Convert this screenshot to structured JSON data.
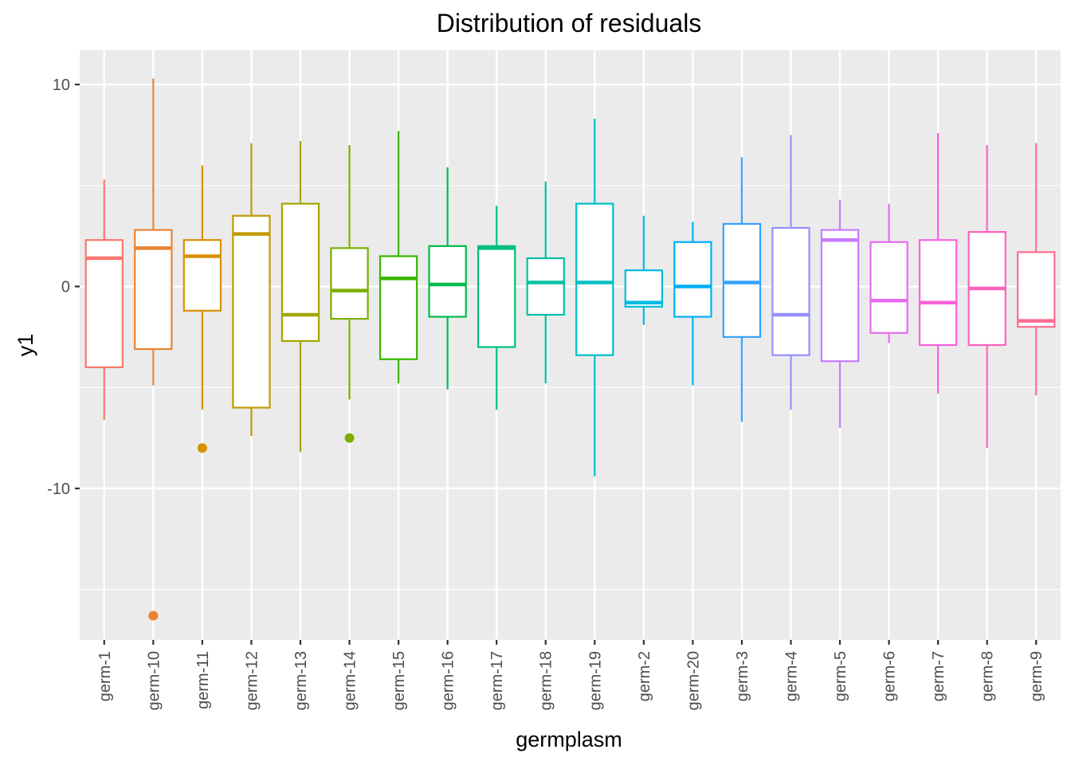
{
  "chart_data": {
    "type": "boxplot",
    "title": "Distribution of residuals",
    "xlabel": "germplasm",
    "ylabel": "y1",
    "ylim": [
      -17.5,
      11.7
    ],
    "y_ticks": [
      -10,
      0,
      10
    ],
    "y_tick_labels": [
      "-10",
      "0",
      "10"
    ],
    "grid": true,
    "categories": [
      "germ-1",
      "germ-10",
      "germ-11",
      "germ-12",
      "germ-13",
      "germ-14",
      "germ-15",
      "germ-16",
      "germ-17",
      "germ-18",
      "germ-19",
      "germ-2",
      "germ-20",
      "germ-3",
      "germ-4",
      "germ-5",
      "germ-6",
      "germ-7",
      "germ-8",
      "germ-9"
    ],
    "colors": [
      "#F8766D",
      "#EA8331",
      "#D89000",
      "#C09B00",
      "#A3A500",
      "#7CAE00",
      "#39B600",
      "#00BB4E",
      "#00BF7D",
      "#00C1A3",
      "#00BFC4",
      "#00BAE0",
      "#00B0F6",
      "#35A2FF",
      "#9590FF",
      "#C77CFF",
      "#E76BF3",
      "#FA62DB",
      "#FF62BC",
      "#FF6C91"
    ],
    "boxes": [
      {
        "lower_whisker": -6.6,
        "q1": -4.0,
        "median": 1.4,
        "q3": 2.3,
        "upper_whisker": 5.3,
        "outliers": []
      },
      {
        "lower_whisker": -4.9,
        "q1": -3.1,
        "median": 1.9,
        "q3": 2.8,
        "upper_whisker": 10.3,
        "outliers": [
          -16.3
        ]
      },
      {
        "lower_whisker": -6.1,
        "q1": -1.2,
        "median": 1.5,
        "q3": 2.3,
        "upper_whisker": 6.0,
        "outliers": [
          -8.0
        ]
      },
      {
        "lower_whisker": -7.4,
        "q1": -6.0,
        "median": 2.6,
        "q3": 3.5,
        "upper_whisker": 7.1,
        "outliers": []
      },
      {
        "lower_whisker": -8.2,
        "q1": -2.7,
        "median": -1.4,
        "q3": 4.1,
        "upper_whisker": 7.2,
        "outliers": []
      },
      {
        "lower_whisker": -5.6,
        "q1": -1.6,
        "median": -0.2,
        "q3": 1.9,
        "upper_whisker": 7.0,
        "outliers": [
          -7.5
        ]
      },
      {
        "lower_whisker": -4.8,
        "q1": -3.6,
        "median": 0.4,
        "q3": 1.5,
        "upper_whisker": 7.7,
        "outliers": []
      },
      {
        "lower_whisker": -5.1,
        "q1": -1.5,
        "median": 0.1,
        "q3": 2.0,
        "upper_whisker": 5.9,
        "outliers": []
      },
      {
        "lower_whisker": -6.1,
        "q1": -3.0,
        "median": 1.9,
        "q3": 2.0,
        "upper_whisker": 4.0,
        "outliers": []
      },
      {
        "lower_whisker": -4.8,
        "q1": -1.4,
        "median": 0.2,
        "q3": 1.4,
        "upper_whisker": 5.2,
        "outliers": []
      },
      {
        "lower_whisker": -9.4,
        "q1": -3.4,
        "median": 0.2,
        "q3": 4.1,
        "upper_whisker": 8.3,
        "outliers": []
      },
      {
        "lower_whisker": -1.9,
        "q1": -1.0,
        "median": -0.8,
        "q3": 0.8,
        "upper_whisker": 3.5,
        "outliers": []
      },
      {
        "lower_whisker": -4.9,
        "q1": -1.5,
        "median": 0.0,
        "q3": 2.2,
        "upper_whisker": 3.2,
        "outliers": []
      },
      {
        "lower_whisker": -6.7,
        "q1": -2.5,
        "median": 0.2,
        "q3": 3.1,
        "upper_whisker": 6.4,
        "outliers": []
      },
      {
        "lower_whisker": -6.1,
        "q1": -3.4,
        "median": -1.4,
        "q3": 2.9,
        "upper_whisker": 7.5,
        "outliers": []
      },
      {
        "lower_whisker": -7.0,
        "q1": -3.7,
        "median": 2.3,
        "q3": 2.8,
        "upper_whisker": 4.3,
        "outliers": []
      },
      {
        "lower_whisker": -2.8,
        "q1": -2.3,
        "median": -0.7,
        "q3": 2.2,
        "upper_whisker": 4.1,
        "outliers": []
      },
      {
        "lower_whisker": -5.3,
        "q1": -2.9,
        "median": -0.8,
        "q3": 2.3,
        "upper_whisker": 7.6,
        "outliers": []
      },
      {
        "lower_whisker": -8.0,
        "q1": -2.9,
        "median": -0.1,
        "q3": 2.7,
        "upper_whisker": 7.0,
        "outliers": []
      },
      {
        "lower_whisker": -5.4,
        "q1": -2.0,
        "median": -1.7,
        "q3": 1.7,
        "upper_whisker": 7.1,
        "outliers": []
      }
    ]
  }
}
